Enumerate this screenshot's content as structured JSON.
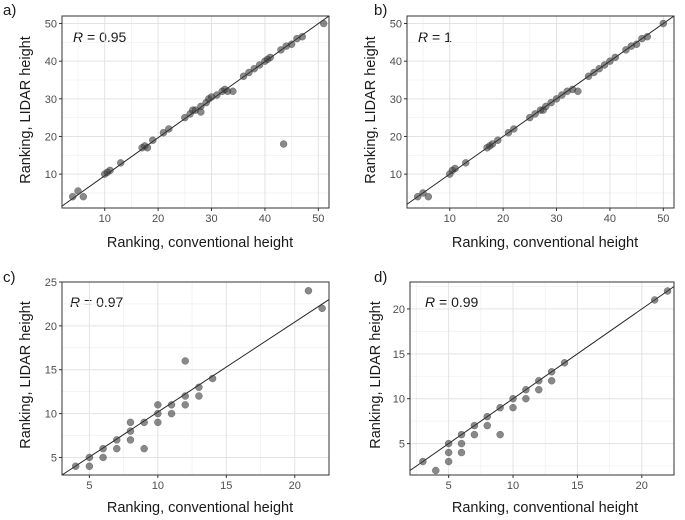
{
  "figure": {
    "background": "#ffffff",
    "point_color": "#3a3a3a"
  },
  "chart_data": [
    {
      "type": "scatter",
      "panel": "a)",
      "annotation": {
        "r_symbol": "R",
        "r_value": " = 0.95"
      },
      "xlabel": "Ranking, conventional height",
      "ylabel": "Ranking, LIDAR height",
      "xlim": [
        2,
        52
      ],
      "ylim": [
        1,
        52
      ],
      "xticks": [
        10,
        20,
        30,
        40,
        50
      ],
      "yticks": [
        10,
        20,
        30,
        40,
        50
      ],
      "xtick_labels": [
        "10",
        "20",
        "30",
        "40",
        "50"
      ],
      "ytick_labels": [
        "10",
        "20",
        "30",
        "40",
        "50"
      ],
      "fit_line": [
        [
          2,
          1.5
        ],
        [
          52,
          52
        ]
      ],
      "points": [
        [
          4,
          4
        ],
        [
          5,
          5.5
        ],
        [
          6,
          4
        ],
        [
          10,
          10
        ],
        [
          10.5,
          10.5
        ],
        [
          11,
          11
        ],
        [
          13,
          13
        ],
        [
          17,
          17
        ],
        [
          17.5,
          17.5
        ],
        [
          18,
          17
        ],
        [
          19,
          19
        ],
        [
          21,
          21
        ],
        [
          22,
          22
        ],
        [
          25,
          25
        ],
        [
          26,
          26
        ],
        [
          26.5,
          27
        ],
        [
          27,
          27
        ],
        [
          28,
          28
        ],
        [
          28,
          26.5
        ],
        [
          29,
          29
        ],
        [
          29.5,
          30
        ],
        [
          30,
          30.5
        ],
        [
          31,
          31
        ],
        [
          32,
          32
        ],
        [
          32.5,
          32.5
        ],
        [
          33,
          32
        ],
        [
          34,
          32
        ],
        [
          36,
          36
        ],
        [
          37,
          37
        ],
        [
          38,
          38
        ],
        [
          39,
          39
        ],
        [
          40,
          40
        ],
        [
          40.5,
          40.5
        ],
        [
          41,
          41
        ],
        [
          43,
          43
        ],
        [
          43.5,
          18
        ],
        [
          44,
          44
        ],
        [
          45,
          44.5
        ],
        [
          46,
          46
        ],
        [
          47,
          46.5
        ],
        [
          51,
          50
        ]
      ]
    },
    {
      "type": "scatter",
      "panel": "b)",
      "annotation": {
        "r_symbol": "R",
        "r_value": " = 1"
      },
      "xlabel": "Ranking, conventional height",
      "ylabel": "Ranking, LIDAR height",
      "xlim": [
        2,
        52
      ],
      "ylim": [
        1,
        52
      ],
      "xticks": [
        10,
        20,
        30,
        40,
        50
      ],
      "yticks": [
        10,
        20,
        30,
        40,
        50
      ],
      "xtick_labels": [
        "10",
        "20",
        "30",
        "40",
        "50"
      ],
      "ytick_labels": [
        "10",
        "20",
        "30",
        "40",
        "50"
      ],
      "fit_line": [
        [
          2,
          2
        ],
        [
          52,
          52
        ]
      ],
      "points": [
        [
          4,
          4
        ],
        [
          5,
          5
        ],
        [
          6,
          4
        ],
        [
          10,
          10
        ],
        [
          10.5,
          11
        ],
        [
          11,
          11.5
        ],
        [
          13,
          13
        ],
        [
          17,
          17
        ],
        [
          17.5,
          17.5
        ],
        [
          18,
          18
        ],
        [
          19,
          19
        ],
        [
          21,
          21
        ],
        [
          22,
          22
        ],
        [
          25,
          25
        ],
        [
          26,
          26
        ],
        [
          27,
          27
        ],
        [
          27.5,
          27
        ],
        [
          28,
          28
        ],
        [
          29,
          29
        ],
        [
          30,
          30
        ],
        [
          31,
          31
        ],
        [
          32,
          32
        ],
        [
          33,
          32.5
        ],
        [
          34,
          32
        ],
        [
          36,
          36
        ],
        [
          37,
          37
        ],
        [
          38,
          38
        ],
        [
          39,
          39
        ],
        [
          40,
          40
        ],
        [
          41,
          41
        ],
        [
          43,
          43
        ],
        [
          44,
          44
        ],
        [
          45,
          44.5
        ],
        [
          46,
          46
        ],
        [
          47,
          46.5
        ],
        [
          50,
          50
        ]
      ]
    },
    {
      "type": "scatter",
      "panel": "c)",
      "annotation": {
        "r_symbol": "R",
        "r_value": " = 0.97"
      },
      "xlabel": "Ranking, conventional height",
      "ylabel": "Ranking, LIDAR height",
      "xlim": [
        3,
        22.5
      ],
      "ylim": [
        3,
        25
      ],
      "xticks": [
        5,
        10,
        15,
        20
      ],
      "yticks": [
        5,
        10,
        15,
        20,
        25
      ],
      "xtick_labels": [
        "5",
        "10",
        "15",
        "20"
      ],
      "ytick_labels": [
        "5",
        "10",
        "15",
        "20",
        "25"
      ],
      "fit_line": [
        [
          3,
          3
        ],
        [
          22.5,
          23
        ]
      ],
      "points": [
        [
          4,
          4
        ],
        [
          5,
          5
        ],
        [
          5,
          4
        ],
        [
          6,
          6
        ],
        [
          6,
          5
        ],
        [
          7,
          7
        ],
        [
          7,
          6
        ],
        [
          8,
          8
        ],
        [
          8,
          9
        ],
        [
          8,
          7
        ],
        [
          9,
          9
        ],
        [
          9,
          6
        ],
        [
          10,
          10
        ],
        [
          10,
          11
        ],
        [
          10,
          9
        ],
        [
          11,
          11
        ],
        [
          11,
          10
        ],
        [
          12,
          12
        ],
        [
          12,
          16
        ],
        [
          12,
          11
        ],
        [
          13,
          13
        ],
        [
          13,
          12
        ],
        [
          14,
          14
        ],
        [
          21,
          24
        ],
        [
          22,
          22
        ]
      ]
    },
    {
      "type": "scatter",
      "panel": "d)",
      "annotation": {
        "r_symbol": "R",
        "r_value": " = 0.99"
      },
      "xlabel": "Ranking, conventional height",
      "ylabel": "Ranking, LIDAR height",
      "xlim": [
        2,
        22.5
      ],
      "ylim": [
        1.5,
        23
      ],
      "xticks": [
        5,
        10,
        15,
        20
      ],
      "yticks": [
        5,
        10,
        15,
        20
      ],
      "xtick_labels": [
        "5",
        "10",
        "15",
        "20"
      ],
      "ytick_labels": [
        "5",
        "10",
        "15",
        "20"
      ],
      "fit_line": [
        [
          2,
          2
        ],
        [
          22.5,
          22.5
        ]
      ],
      "points": [
        [
          3,
          3
        ],
        [
          4,
          2
        ],
        [
          5,
          5
        ],
        [
          5,
          4
        ],
        [
          5,
          3
        ],
        [
          6,
          6
        ],
        [
          6,
          5
        ],
        [
          6,
          4
        ],
        [
          7,
          7
        ],
        [
          7,
          6
        ],
        [
          8,
          8
        ],
        [
          8,
          7
        ],
        [
          9,
          9
        ],
        [
          9,
          6
        ],
        [
          10,
          10
        ],
        [
          10,
          9
        ],
        [
          11,
          11
        ],
        [
          11,
          10
        ],
        [
          12,
          12
        ],
        [
          12,
          11
        ],
        [
          13,
          13
        ],
        [
          13,
          12
        ],
        [
          14,
          14
        ],
        [
          21,
          21
        ],
        [
          22,
          22
        ]
      ]
    }
  ]
}
